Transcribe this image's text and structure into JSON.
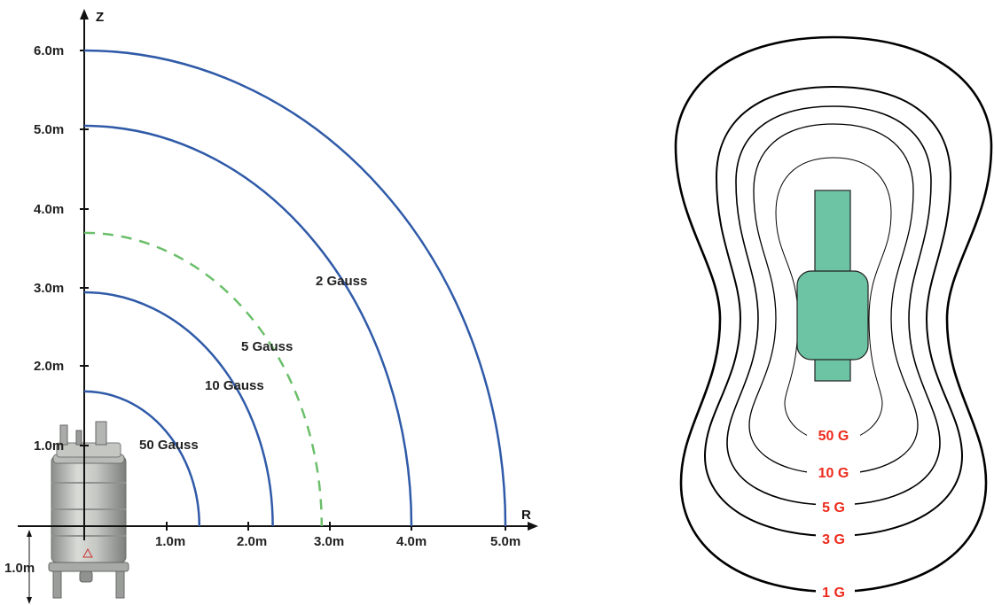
{
  "left_diagram": {
    "axes": {
      "r_name": "R",
      "z_name": "Z"
    },
    "r_ticks": [
      "1.0m",
      "2.0m",
      "3.0m",
      "4.0m",
      "5.0m"
    ],
    "z_ticks": [
      "1.0m",
      "2.0m",
      "3.0m",
      "4.0m",
      "5.0m",
      "6.0m"
    ],
    "depth_label": "1.0m",
    "field_lines": [
      {
        "label": "50 Gauss",
        "r_extent": 1.4,
        "z_extent": 1.7,
        "style": "solid",
        "color": "#2f5aa8"
      },
      {
        "label": "10 Gauss",
        "r_extent": 2.3,
        "z_extent": 2.95,
        "style": "solid",
        "color": "#2f5aa8"
      },
      {
        "label": "5 Gauss",
        "r_extent": 2.9,
        "z_extent": 3.7,
        "style": "dashed",
        "color": "#6bbf6a"
      },
      {
        "label": "2 Gauss",
        "r_extent": 4.0,
        "z_extent": 5.05,
        "style": "solid",
        "color": "#2f5aa8"
      },
      {
        "label": "",
        "r_extent": 5.0,
        "z_extent": 6.0,
        "style": "solid",
        "color": "#2f5aa8"
      }
    ]
  },
  "right_diagram": {
    "magnet_color": "#6cc4a4",
    "contour_labels": [
      "50 G",
      "10 G",
      "5 G",
      "3 G",
      "1 G"
    ],
    "label_color": "#ee2a1b"
  }
}
